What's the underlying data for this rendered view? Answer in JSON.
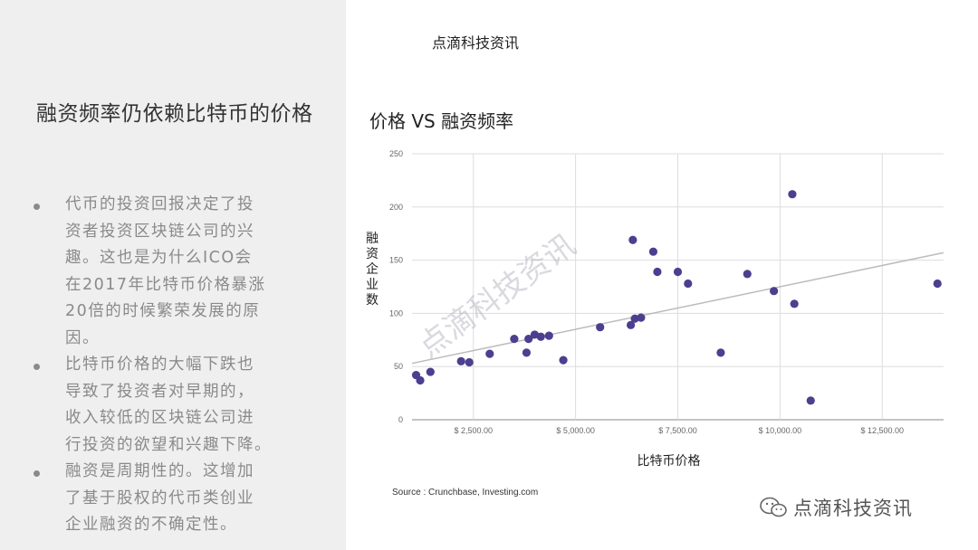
{
  "brand": "点滴科技资讯",
  "slide": {
    "title": "融资频率仍依赖比特币的价格",
    "bullets": [
      [
        "代币的投资回报决定了投",
        "资者投资区块链公司的兴",
        "趣。这也是为什么ICO会",
        "在2017年比特币价格暴涨",
        "20倍的时候繁荣发展的原",
        "因。"
      ],
      [
        "比特币价格的大幅下跌也",
        "导致了投资者对早期的，",
        "收入较低的区块链公司进",
        "行投资的欲望和兴趣下降。"
      ],
      [
        "融资是周期性的。这增加",
        "了基于股权的代币类创业",
        "企业融资的不确定性。"
      ]
    ]
  },
  "chart_data": {
    "type": "scatter",
    "title": "价格 VS 融资频率",
    "xlabel": "比特币价格",
    "ylabel": "融资企业数",
    "xlim": [
      1000,
      14000
    ],
    "ylim": [
      0,
      250
    ],
    "xticks": [
      2500,
      5000,
      7500,
      10000,
      12500
    ],
    "xtick_labels": [
      "$ 2,500.00",
      "$ 5,000.00",
      "$ 7,500.00",
      "$ 10,000.00",
      "$ 12,500.00"
    ],
    "yticks": [
      0,
      50,
      100,
      150,
      200,
      250
    ],
    "ytick_labels": [
      "0",
      "50",
      "100",
      "150",
      "200",
      "250"
    ],
    "grid": true,
    "point_color": "#4b3f8f",
    "trendline_color": "#bbbbbb",
    "points": [
      [
        1100,
        42
      ],
      [
        1200,
        37
      ],
      [
        1450,
        45
      ],
      [
        2200,
        55
      ],
      [
        2400,
        54
      ],
      [
        2900,
        62
      ],
      [
        3500,
        76
      ],
      [
        3800,
        63
      ],
      [
        3850,
        76
      ],
      [
        4000,
        80
      ],
      [
        4150,
        78
      ],
      [
        4350,
        79
      ],
      [
        4700,
        56
      ],
      [
        5600,
        87
      ],
      [
        6350,
        89
      ],
      [
        6400,
        169
      ],
      [
        6450,
        95
      ],
      [
        6600,
        96
      ],
      [
        6900,
        158
      ],
      [
        7000,
        139
      ],
      [
        7500,
        139
      ],
      [
        7750,
        128
      ],
      [
        8550,
        63
      ],
      [
        9200,
        137
      ],
      [
        9850,
        121
      ],
      [
        10300,
        212
      ],
      [
        10350,
        109
      ],
      [
        10750,
        18
      ],
      [
        13850,
        128
      ]
    ],
    "trendline": [
      [
        1000,
        53
      ],
      [
        14000,
        157
      ]
    ],
    "source": "Source : Crunchbase, Investing.com"
  }
}
